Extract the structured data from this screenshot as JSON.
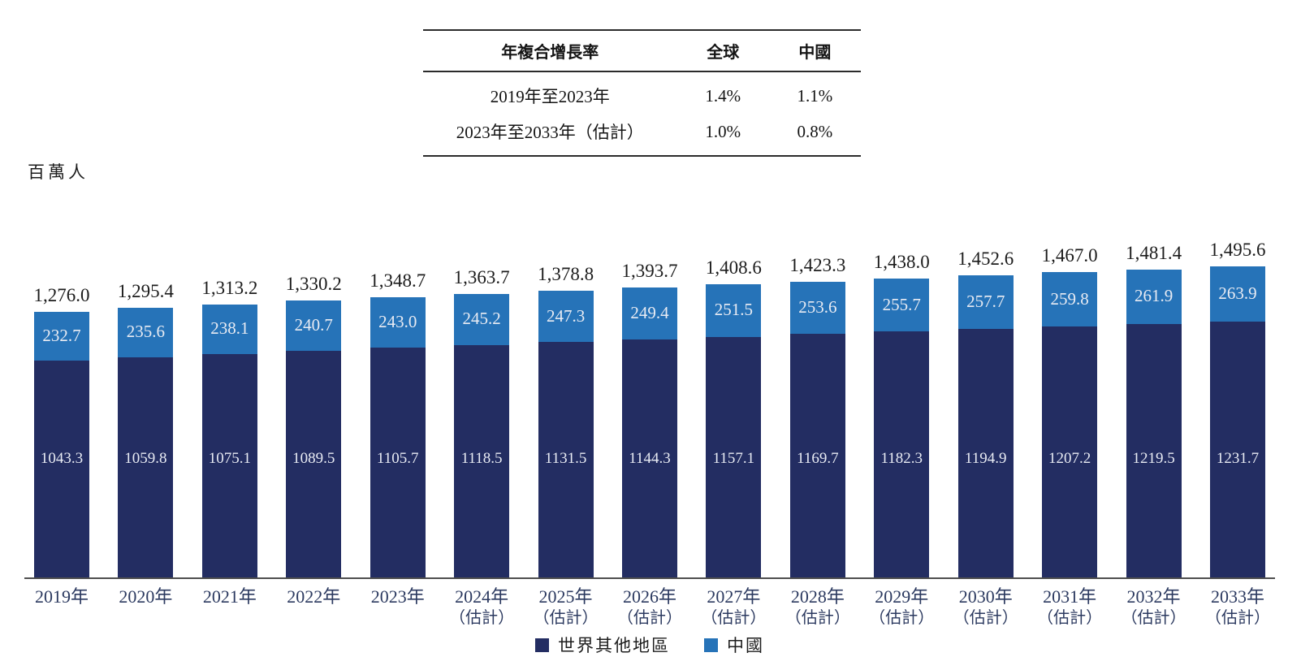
{
  "cagr_table": {
    "headers": [
      "年複合增長率",
      "全球",
      "中國"
    ],
    "rows": [
      {
        "period": "2019年至2023年",
        "global": "1.4%",
        "china": "1.1%"
      },
      {
        "period": "2023年至2033年（估計）",
        "global": "1.0%",
        "china": "0.8%"
      }
    ]
  },
  "unit_label": "百萬人",
  "chart_data": {
    "type": "bar",
    "stacked": true,
    "ylabel": "百萬人",
    "ylim": [
      0,
      1520
    ],
    "grid": false,
    "legend_position": "bottom",
    "categories": [
      "2019年",
      "2020年",
      "2021年",
      "2022年",
      "2023年",
      "2024年",
      "2025年",
      "2026年",
      "2027年",
      "2028年",
      "2029年",
      "2030年",
      "2031年",
      "2032年",
      "2033年"
    ],
    "estimate_suffix": "（估計）",
    "estimate_from_index": 5,
    "series": [
      {
        "name": "世界其他地區",
        "color": "#232D62",
        "values": [
          1043.3,
          1059.8,
          1075.1,
          1089.5,
          1105.7,
          1118.5,
          1131.5,
          1144.3,
          1157.1,
          1169.7,
          1182.3,
          1194.9,
          1207.2,
          1219.5,
          1231.7
        ],
        "labels": [
          "1043.3",
          "1059.8",
          "1075.1",
          "1089.5",
          "1105.7",
          "1118.5",
          "1131.5",
          "1144.3",
          "1157.1",
          "1169.7",
          "1182.3",
          "1194.9",
          "1207.2",
          "1219.5",
          "1231.7"
        ]
      },
      {
        "name": "中國",
        "color": "#2673B8",
        "values": [
          232.7,
          235.6,
          238.1,
          240.7,
          243.0,
          245.2,
          247.3,
          249.4,
          251.5,
          253.6,
          255.7,
          257.7,
          259.8,
          261.9,
          263.9
        ],
        "labels": [
          "232.7",
          "235.6",
          "238.1",
          "240.7",
          "243.0",
          "245.2",
          "247.3",
          "249.4",
          "251.5",
          "253.6",
          "255.7",
          "257.7",
          "259.8",
          "261.9",
          "263.9"
        ]
      }
    ],
    "totals": [
      1276.0,
      1295.4,
      1313.2,
      1330.2,
      1348.7,
      1363.7,
      1378.8,
      1393.7,
      1408.6,
      1423.3,
      1438.0,
      1452.6,
      1467.0,
      1481.4,
      1495.6
    ],
    "total_labels": [
      "1,276.0",
      "1,295.4",
      "1,313.2",
      "1,330.2",
      "1,348.7",
      "1,363.7",
      "1,378.8",
      "1,393.7",
      "1,408.6",
      "1,423.3",
      "1,438.0",
      "1,452.6",
      "1,467.0",
      "1,481.4",
      "1,495.6"
    ]
  }
}
